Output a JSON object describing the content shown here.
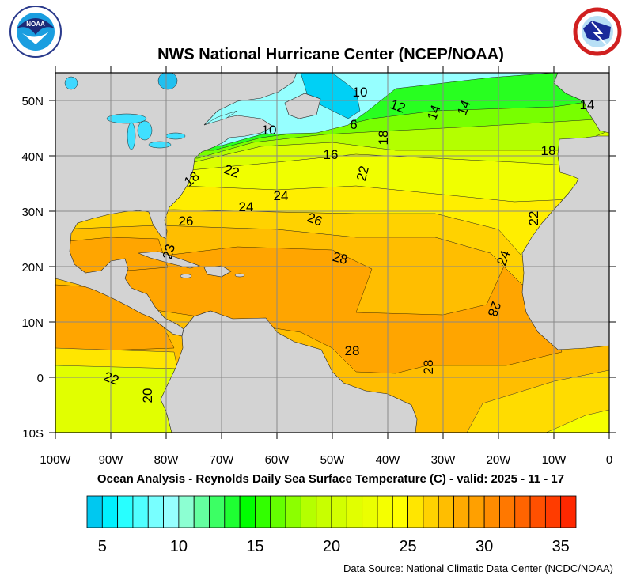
{
  "header": {
    "title": "NWS National Hurricane Center (NCEP/NOAA)",
    "left_logo": {
      "name": "noaa-logo",
      "text": "NOAA",
      "ring_text": "NATIONAL OCEANIC AND ATMOSPHERIC ADMINISTRATION U.S. DEPARTMENT OF COMMERCE"
    },
    "right_logo": {
      "name": "nws-logo",
      "ring_text": "NATIONAL WEATHER SERVICE"
    }
  },
  "map": {
    "subtitle": "Ocean Analysis - Reynolds Daily Sea Surface Temperature (C) - valid: 2025 - 11 - 17",
    "lon_labels": [
      "100W",
      "90W",
      "80W",
      "70W",
      "60W",
      "50W",
      "40W",
      "30W",
      "20W",
      "10W",
      "0"
    ],
    "lat_labels": [
      "50N",
      "40N",
      "30N",
      "20N",
      "10N",
      "0",
      "10S"
    ],
    "lon_range": [
      -100,
      0
    ],
    "lat_range": [
      -10,
      55
    ],
    "land_color": "#d3d3d3",
    "contour_labels": [
      "10",
      "12",
      "14",
      "14",
      "14",
      "10",
      "6",
      "16",
      "18",
      "18",
      "22",
      "18",
      "22",
      "24",
      "24",
      "26",
      "26",
      "28",
      "28",
      "28",
      "28",
      "24",
      "22",
      "20",
      "23",
      "22"
    ]
  },
  "colorbar": {
    "colors": [
      "#00c8f0",
      "#00f0ff",
      "#28ffff",
      "#50ffff",
      "#78ffff",
      "#96ffff",
      "#8cffd2",
      "#64ffa0",
      "#3cff64",
      "#1eff32",
      "#00ff00",
      "#32ff00",
      "#64ff00",
      "#8cff00",
      "#b4ff00",
      "#c8ff00",
      "#d2ff00",
      "#e1ff00",
      "#ebff00",
      "#f5ff00",
      "#ffff00",
      "#ffe600",
      "#ffd200",
      "#ffbe00",
      "#ffaa00",
      "#ffa000",
      "#ff8c00",
      "#ff7800",
      "#ff6400",
      "#ff5000",
      "#ff3c00",
      "#ff2800"
    ],
    "labels": [
      "5",
      "10",
      "15",
      "20",
      "25",
      "30",
      "35"
    ],
    "label_values": [
      5,
      10,
      15,
      20,
      25,
      30,
      35
    ],
    "min": 4,
    "step": 1
  },
  "footer": {
    "source": "Data Source: National Climatic Data Center (NCDC/NOAA)"
  }
}
